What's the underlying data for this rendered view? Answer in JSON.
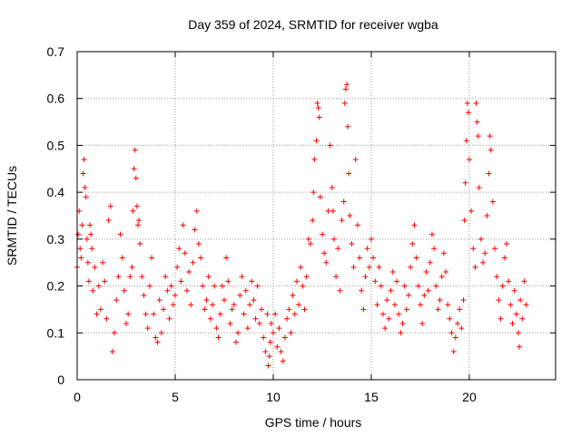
{
  "chart_data": {
    "type": "scatter",
    "title": "Day 359 of 2024, SRMTID for receiver wgba",
    "xlabel": "GPS time / hours",
    "ylabel": "SRMTID / TECUs",
    "xlim": [
      0,
      24.4
    ],
    "ylim": [
      0,
      0.7
    ],
    "x_ticks": [
      0,
      5,
      10,
      15,
      20
    ],
    "x_tick_labels": [
      "0",
      "5",
      "10",
      "15",
      "20"
    ],
    "y_ticks": [
      0,
      0.1,
      0.2,
      0.3,
      0.4,
      0.5,
      0.6,
      0.7
    ],
    "y_tick_labels": [
      "0",
      "0.1",
      "0.2",
      "0.3",
      "0.4",
      "0.5",
      "0.6",
      "0.7"
    ],
    "grid": true,
    "marker": "+",
    "series": [
      {
        "name": "SRMTID",
        "color": "#ff0000",
        "points": [
          [
            0.0,
            0.24
          ],
          [
            0.05,
            0.31
          ],
          [
            0.1,
            0.36
          ],
          [
            0.15,
            0.28
          ],
          [
            0.2,
            0.26
          ],
          [
            0.25,
            0.33
          ],
          [
            0.3,
            0.44
          ],
          [
            0.35,
            0.47
          ],
          [
            0.4,
            0.41
          ],
          [
            0.45,
            0.39
          ],
          [
            0.5,
            0.3
          ],
          [
            0.55,
            0.25
          ],
          [
            0.6,
            0.21
          ],
          [
            0.65,
            0.33
          ],
          [
            0.7,
            0.31
          ],
          [
            0.75,
            0.28
          ],
          [
            0.8,
            0.19
          ],
          [
            0.9,
            0.24
          ],
          [
            1.0,
            0.14
          ],
          [
            1.1,
            0.2
          ],
          [
            1.2,
            0.15
          ],
          [
            1.3,
            0.25
          ],
          [
            1.4,
            0.21
          ],
          [
            1.5,
            0.13
          ],
          [
            1.6,
            0.34
          ],
          [
            1.7,
            0.37
          ],
          [
            1.8,
            0.06
          ],
          [
            1.9,
            0.1
          ],
          [
            2.0,
            0.17
          ],
          [
            2.1,
            0.22
          ],
          [
            2.2,
            0.31
          ],
          [
            2.3,
            0.26
          ],
          [
            2.4,
            0.19
          ],
          [
            2.5,
            0.12
          ],
          [
            2.6,
            0.14
          ],
          [
            2.7,
            0.22
          ],
          [
            2.8,
            0.24
          ],
          [
            2.85,
            0.36
          ],
          [
            2.9,
            0.45
          ],
          [
            2.95,
            0.49
          ],
          [
            3.0,
            0.43
          ],
          [
            3.05,
            0.37
          ],
          [
            3.1,
            0.33
          ],
          [
            3.15,
            0.34
          ],
          [
            3.2,
            0.29
          ],
          [
            3.3,
            0.22
          ],
          [
            3.4,
            0.18
          ],
          [
            3.5,
            0.14
          ],
          [
            3.6,
            0.11
          ],
          [
            3.7,
            0.2
          ],
          [
            3.8,
            0.26
          ],
          [
            3.9,
            0.14
          ],
          [
            4.0,
            0.09
          ],
          [
            4.1,
            0.08
          ],
          [
            4.2,
            0.17
          ],
          [
            4.3,
            0.1
          ],
          [
            4.4,
            0.15
          ],
          [
            4.5,
            0.22
          ],
          [
            4.6,
            0.19
          ],
          [
            4.7,
            0.13
          ],
          [
            4.8,
            0.2
          ],
          [
            4.9,
            0.16
          ],
          [
            5.0,
            0.18
          ],
          [
            5.1,
            0.24
          ],
          [
            5.2,
            0.28
          ],
          [
            5.3,
            0.21
          ],
          [
            5.4,
            0.33
          ],
          [
            5.5,
            0.27
          ],
          [
            5.6,
            0.19
          ],
          [
            5.7,
            0.23
          ],
          [
            5.8,
            0.16
          ],
          [
            5.9,
            0.25
          ],
          [
            6.0,
            0.32
          ],
          [
            6.1,
            0.36
          ],
          [
            6.2,
            0.29
          ],
          [
            6.3,
            0.26
          ],
          [
            6.4,
            0.2
          ],
          [
            6.5,
            0.15
          ],
          [
            6.6,
            0.17
          ],
          [
            6.7,
            0.22
          ],
          [
            6.8,
            0.13
          ],
          [
            6.9,
            0.16
          ],
          [
            7.0,
            0.2
          ],
          [
            7.1,
            0.11
          ],
          [
            7.2,
            0.09
          ],
          [
            7.3,
            0.14
          ],
          [
            7.4,
            0.2
          ],
          [
            7.5,
            0.17
          ],
          [
            7.6,
            0.26
          ],
          [
            7.7,
            0.21
          ],
          [
            7.8,
            0.12
          ],
          [
            7.9,
            0.15
          ],
          [
            8.0,
            0.16
          ],
          [
            8.1,
            0.08
          ],
          [
            8.2,
            0.1
          ],
          [
            8.3,
            0.18
          ],
          [
            8.4,
            0.22
          ],
          [
            8.5,
            0.14
          ],
          [
            8.6,
            0.19
          ],
          [
            8.7,
            0.11
          ],
          [
            8.8,
            0.16
          ],
          [
            8.9,
            0.21
          ],
          [
            9.0,
            0.17
          ],
          [
            9.1,
            0.13
          ],
          [
            9.2,
            0.2
          ],
          [
            9.3,
            0.12
          ],
          [
            9.4,
            0.15
          ],
          [
            9.5,
            0.09
          ],
          [
            9.6,
            0.06
          ],
          [
            9.7,
            0.14
          ],
          [
            9.75,
            0.03
          ],
          [
            9.8,
            0.05
          ],
          [
            9.85,
            0.08
          ],
          [
            9.9,
            0.12
          ],
          [
            10.0,
            0.1
          ],
          [
            10.1,
            0.14
          ],
          [
            10.2,
            0.07
          ],
          [
            10.3,
            0.11
          ],
          [
            10.4,
            0.06
          ],
          [
            10.5,
            0.04
          ],
          [
            10.6,
            0.09
          ],
          [
            10.7,
            0.13
          ],
          [
            10.8,
            0.15
          ],
          [
            10.9,
            0.1
          ],
          [
            11.0,
            0.18
          ],
          [
            11.1,
            0.14
          ],
          [
            11.2,
            0.21
          ],
          [
            11.3,
            0.16
          ],
          [
            11.4,
            0.24
          ],
          [
            11.5,
            0.2
          ],
          [
            11.6,
            0.15
          ],
          [
            11.7,
            0.22
          ],
          [
            11.8,
            0.3
          ],
          [
            11.9,
            0.29
          ],
          [
            12.0,
            0.34
          ],
          [
            12.05,
            0.4
          ],
          [
            12.1,
            0.47
          ],
          [
            12.2,
            0.51
          ],
          [
            12.25,
            0.59
          ],
          [
            12.3,
            0.58
          ],
          [
            12.35,
            0.56
          ],
          [
            12.4,
            0.39
          ],
          [
            12.5,
            0.31
          ],
          [
            12.6,
            0.27
          ],
          [
            12.7,
            0.25
          ],
          [
            12.8,
            0.36
          ],
          [
            12.9,
            0.5
          ],
          [
            13.0,
            0.41
          ],
          [
            13.05,
            0.36
          ],
          [
            13.1,
            0.3
          ],
          [
            13.2,
            0.22
          ],
          [
            13.3,
            0.28
          ],
          [
            13.4,
            0.19
          ],
          [
            13.5,
            0.34
          ],
          [
            13.6,
            0.38
          ],
          [
            13.65,
            0.59
          ],
          [
            13.7,
            0.62
          ],
          [
            13.75,
            0.63
          ],
          [
            13.8,
            0.54
          ],
          [
            13.85,
            0.44
          ],
          [
            13.9,
            0.35
          ],
          [
            14.0,
            0.29
          ],
          [
            14.1,
            0.24
          ],
          [
            14.2,
            0.47
          ],
          [
            14.3,
            0.33
          ],
          [
            14.4,
            0.26
          ],
          [
            14.5,
            0.19
          ],
          [
            14.6,
            0.15
          ],
          [
            14.7,
            0.22
          ],
          [
            14.8,
            0.28
          ],
          [
            14.9,
            0.24
          ],
          [
            15.0,
            0.3
          ],
          [
            15.1,
            0.26
          ],
          [
            15.2,
            0.21
          ],
          [
            15.3,
            0.16
          ],
          [
            15.4,
            0.24
          ],
          [
            15.5,
            0.2
          ],
          [
            15.6,
            0.14
          ],
          [
            15.7,
            0.11
          ],
          [
            15.8,
            0.17
          ],
          [
            15.9,
            0.13
          ],
          [
            16.0,
            0.19
          ],
          [
            16.1,
            0.23
          ],
          [
            16.2,
            0.16
          ],
          [
            16.3,
            0.21
          ],
          [
            16.4,
            0.14
          ],
          [
            16.5,
            0.1
          ],
          [
            16.6,
            0.12
          ],
          [
            16.7,
            0.2
          ],
          [
            16.8,
            0.15
          ],
          [
            16.9,
            0.18
          ],
          [
            17.0,
            0.24
          ],
          [
            17.1,
            0.29
          ],
          [
            17.2,
            0.33
          ],
          [
            17.3,
            0.26
          ],
          [
            17.4,
            0.2
          ],
          [
            17.5,
            0.16
          ],
          [
            17.6,
            0.12
          ],
          [
            17.7,
            0.18
          ],
          [
            17.8,
            0.23
          ],
          [
            17.9,
            0.19
          ],
          [
            18.0,
            0.25
          ],
          [
            18.1,
            0.31
          ],
          [
            18.2,
            0.28
          ],
          [
            18.3,
            0.2
          ],
          [
            18.4,
            0.15
          ],
          [
            18.5,
            0.17
          ],
          [
            18.6,
            0.22
          ],
          [
            18.7,
            0.27
          ],
          [
            18.8,
            0.23
          ],
          [
            18.9,
            0.16
          ],
          [
            19.0,
            0.13
          ],
          [
            19.1,
            0.1
          ],
          [
            19.2,
            0.06
          ],
          [
            19.3,
            0.09
          ],
          [
            19.4,
            0.12
          ],
          [
            19.5,
            0.15
          ],
          [
            19.6,
            0.11
          ],
          [
            19.7,
            0.17
          ],
          [
            19.75,
            0.34
          ],
          [
            19.8,
            0.42
          ],
          [
            19.85,
            0.51
          ],
          [
            19.9,
            0.59
          ],
          [
            19.95,
            0.57
          ],
          [
            20.0,
            0.47
          ],
          [
            20.1,
            0.36
          ],
          [
            20.2,
            0.28
          ],
          [
            20.3,
            0.24
          ],
          [
            20.35,
            0.59
          ],
          [
            20.4,
            0.55
          ],
          [
            20.45,
            0.52
          ],
          [
            20.5,
            0.41
          ],
          [
            20.6,
            0.3
          ],
          [
            20.7,
            0.25
          ],
          [
            20.8,
            0.27
          ],
          [
            20.9,
            0.35
          ],
          [
            21.0,
            0.44
          ],
          [
            21.05,
            0.52
          ],
          [
            21.1,
            0.49
          ],
          [
            21.2,
            0.38
          ],
          [
            21.3,
            0.28
          ],
          [
            21.4,
            0.22
          ],
          [
            21.5,
            0.17
          ],
          [
            21.6,
            0.13
          ],
          [
            21.7,
            0.2
          ],
          [
            21.8,
            0.26
          ],
          [
            21.9,
            0.29
          ],
          [
            22.0,
            0.21
          ],
          [
            22.1,
            0.16
          ],
          [
            22.2,
            0.12
          ],
          [
            22.3,
            0.19
          ],
          [
            22.4,
            0.14
          ],
          [
            22.5,
            0.1
          ],
          [
            22.55,
            0.07
          ],
          [
            22.6,
            0.17
          ],
          [
            22.7,
            0.13
          ],
          [
            22.8,
            0.21
          ],
          [
            22.9,
            0.16
          ]
        ]
      }
    ]
  }
}
